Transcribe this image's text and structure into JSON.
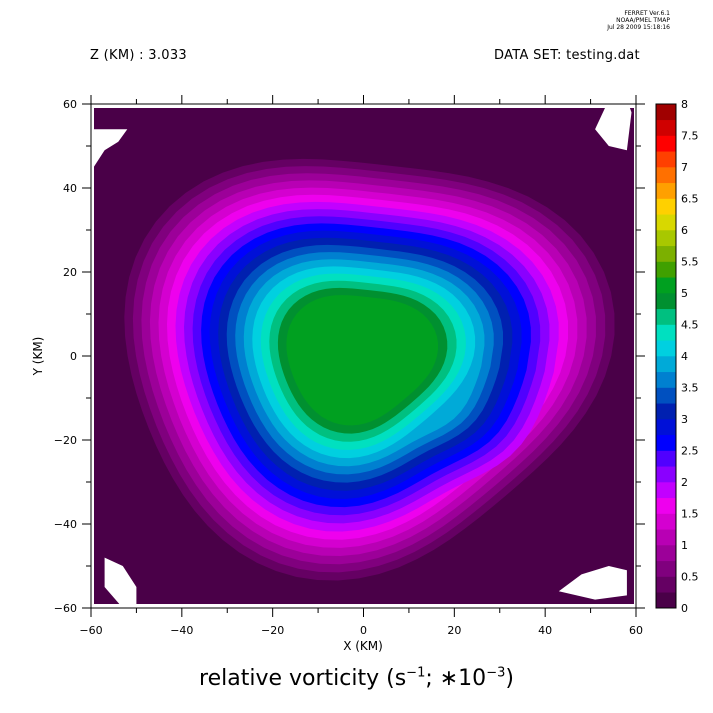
{
  "stamp": {
    "line1": "FERRET  Ver.6.1",
    "line2": "NOAA/PMEL TMAP",
    "line3": "Jul 28 2009 15:18:16"
  },
  "header": {
    "left": "Z (KM) : 3.033",
    "right": "DATA SET: testing.dat"
  },
  "title": {
    "prefix": "relative vorticity (s",
    "exp1": "−1",
    "mid": "; ∗10",
    "exp2": "−3",
    "suffix": ")"
  },
  "chart_data": {
    "type": "heatmap",
    "subtype": "filled-contour",
    "xlabel": "X (KM)",
    "ylabel": "Y (KM)",
    "xlim": [
      -60,
      60
    ],
    "ylim": [
      -60,
      60
    ],
    "xticks": [
      -60,
      -40,
      -20,
      0,
      20,
      40,
      60
    ],
    "yticks": [
      -60,
      -40,
      -20,
      0,
      20,
      40,
      60
    ],
    "colorbar": {
      "levels": [
        0,
        0.25,
        0.5,
        0.75,
        1,
        1.25,
        1.5,
        1.75,
        2,
        2.25,
        2.5,
        2.75,
        3,
        3.25,
        3.5,
        3.75,
        4,
        4.25,
        4.5,
        4.75,
        5,
        5.25,
        5.5,
        5.75,
        6,
        6.25,
        6.5,
        6.75,
        7,
        7.25,
        7.5,
        7.75,
        8
      ],
      "labels": [
        "0",
        "0.5",
        "1",
        "1.5",
        "2",
        "2.5",
        "3",
        "3.5",
        "4",
        "4.5",
        "5",
        "5.5",
        "6",
        "6.5",
        "7",
        "7.5",
        "8"
      ],
      "colors": [
        "#4a0048",
        "#650063",
        "#80007e",
        "#9c0099",
        "#b800b4",
        "#d400d0",
        "#ee00ee",
        "#c200ff",
        "#8a00ff",
        "#5000ff",
        "#0000ff",
        "#0010d8",
        "#0020b0",
        "#0050c0",
        "#0080d0",
        "#00aad8",
        "#00d0e0",
        "#00e0c0",
        "#00c080",
        "#009030",
        "#00a020",
        "#40a000",
        "#7cb000",
        "#a8c800",
        "#d8d800",
        "#ffd000",
        "#ffa000",
        "#ff7000",
        "#ff4000",
        "#ff0000",
        "#d00000",
        "#a00000",
        "#700000"
      ]
    },
    "vortex": {
      "center": [
        -1,
        0
      ],
      "peak_value": 5.1,
      "peak_radius_km": 15,
      "edge_radius_km": 52,
      "background_value": 0.1
    }
  }
}
